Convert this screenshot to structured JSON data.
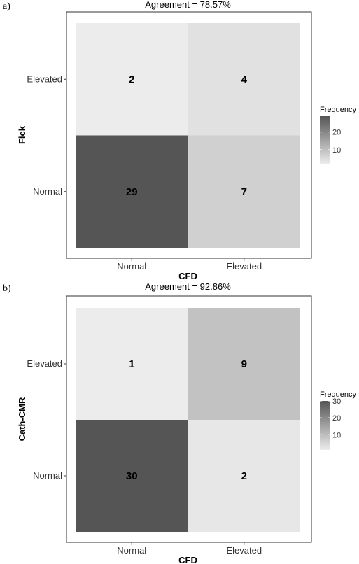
{
  "chart_data": [
    {
      "type": "heatmap",
      "panel_label": "a)",
      "title": "Agreement = 78.57%",
      "xlabel": "CFD",
      "ylabel": "Fick",
      "x_categories": [
        "Normal",
        "Elevated"
      ],
      "y_categories": [
        "Normal",
        "Elevated"
      ],
      "cells": [
        {
          "x": "Normal",
          "y": "Elevated",
          "value": 2
        },
        {
          "x": "Elevated",
          "y": "Elevated",
          "value": 4
        },
        {
          "x": "Normal",
          "y": "Normal",
          "value": 29
        },
        {
          "x": "Elevated",
          "y": "Normal",
          "value": 7
        }
      ],
      "legend": {
        "title": "Frequency",
        "ticks": [
          10,
          20
        ],
        "range": [
          2,
          29
        ],
        "low_color": "#ececec",
        "high_color": "#555555"
      }
    },
    {
      "type": "heatmap",
      "panel_label": "b)",
      "title": "Agreement = 92.86%",
      "xlabel": "CFD",
      "ylabel": "Cath-CMR",
      "x_categories": [
        "Normal",
        "Elevated"
      ],
      "y_categories": [
        "Normal",
        "Elevated"
      ],
      "cells": [
        {
          "x": "Normal",
          "y": "Elevated",
          "value": 1
        },
        {
          "x": "Elevated",
          "y": "Elevated",
          "value": 9
        },
        {
          "x": "Normal",
          "y": "Normal",
          "value": 30
        },
        {
          "x": "Elevated",
          "y": "Normal",
          "value": 2
        }
      ],
      "legend": {
        "title": "Frequency",
        "ticks": [
          10,
          20,
          30
        ],
        "range": [
          1,
          30
        ],
        "low_color": "#ececec",
        "high_color": "#555555"
      }
    }
  ]
}
